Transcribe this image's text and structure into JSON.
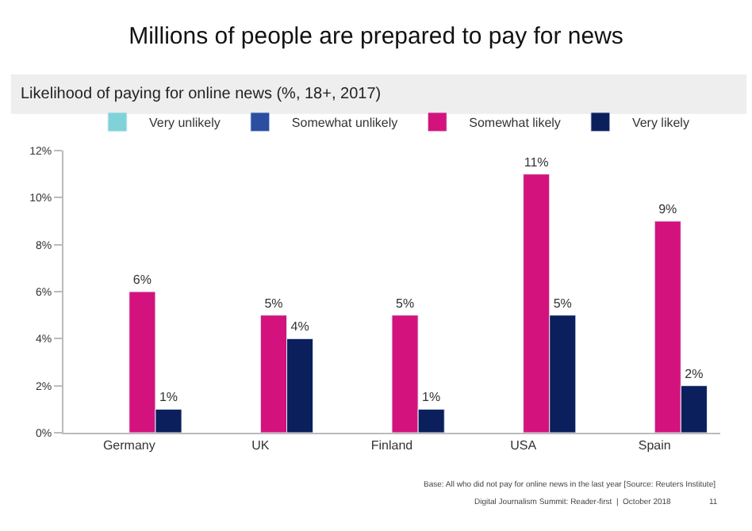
{
  "chart_data": {
    "type": "bar",
    "title": "Millions of people are prepared to pay for news",
    "subtitle": "Likelihood of paying for online news (%, 18+, 2017)",
    "categories": [
      "Germany",
      "UK",
      "Finland",
      "USA",
      "Spain"
    ],
    "series": [
      {
        "name": "Very unlikely",
        "color": "#7fd3d8",
        "values": [
          null,
          null,
          null,
          null,
          null
        ]
      },
      {
        "name": "Somewhat unlikely",
        "color": "#2b4ea2",
        "values": [
          null,
          null,
          null,
          null,
          null
        ]
      },
      {
        "name": "Somewhat likely",
        "color": "#d4127d",
        "values": [
          6,
          5,
          5,
          11,
          9
        ],
        "value_labels": [
          "6%",
          "5%",
          "5%",
          "11%",
          "9%"
        ]
      },
      {
        "name": "Very likely",
        "color": "#0b1f5c",
        "values": [
          1,
          4,
          1,
          5,
          2
        ],
        "value_labels": [
          "1%",
          "4%",
          "1%",
          "5%",
          "2%"
        ]
      }
    ],
    "ylim": [
      0,
      12
    ],
    "yticks": [
      {
        "value": 0,
        "label": "0%"
      },
      {
        "value": 2,
        "label": "2%"
      },
      {
        "value": 4,
        "label": "4%"
      },
      {
        "value": 6,
        "label": "6%"
      },
      {
        "value": 8,
        "label": "8%"
      },
      {
        "value": 10,
        "label": "10%"
      },
      {
        "value": 12,
        "label": "12%"
      }
    ],
    "legend": "top",
    "annotations": [
      "Base: All who did not pay for online news in the last year [Source: Reuters Institute]",
      "Digital Journalism Summit: Reader-first  |  October 2018",
      "11"
    ]
  }
}
